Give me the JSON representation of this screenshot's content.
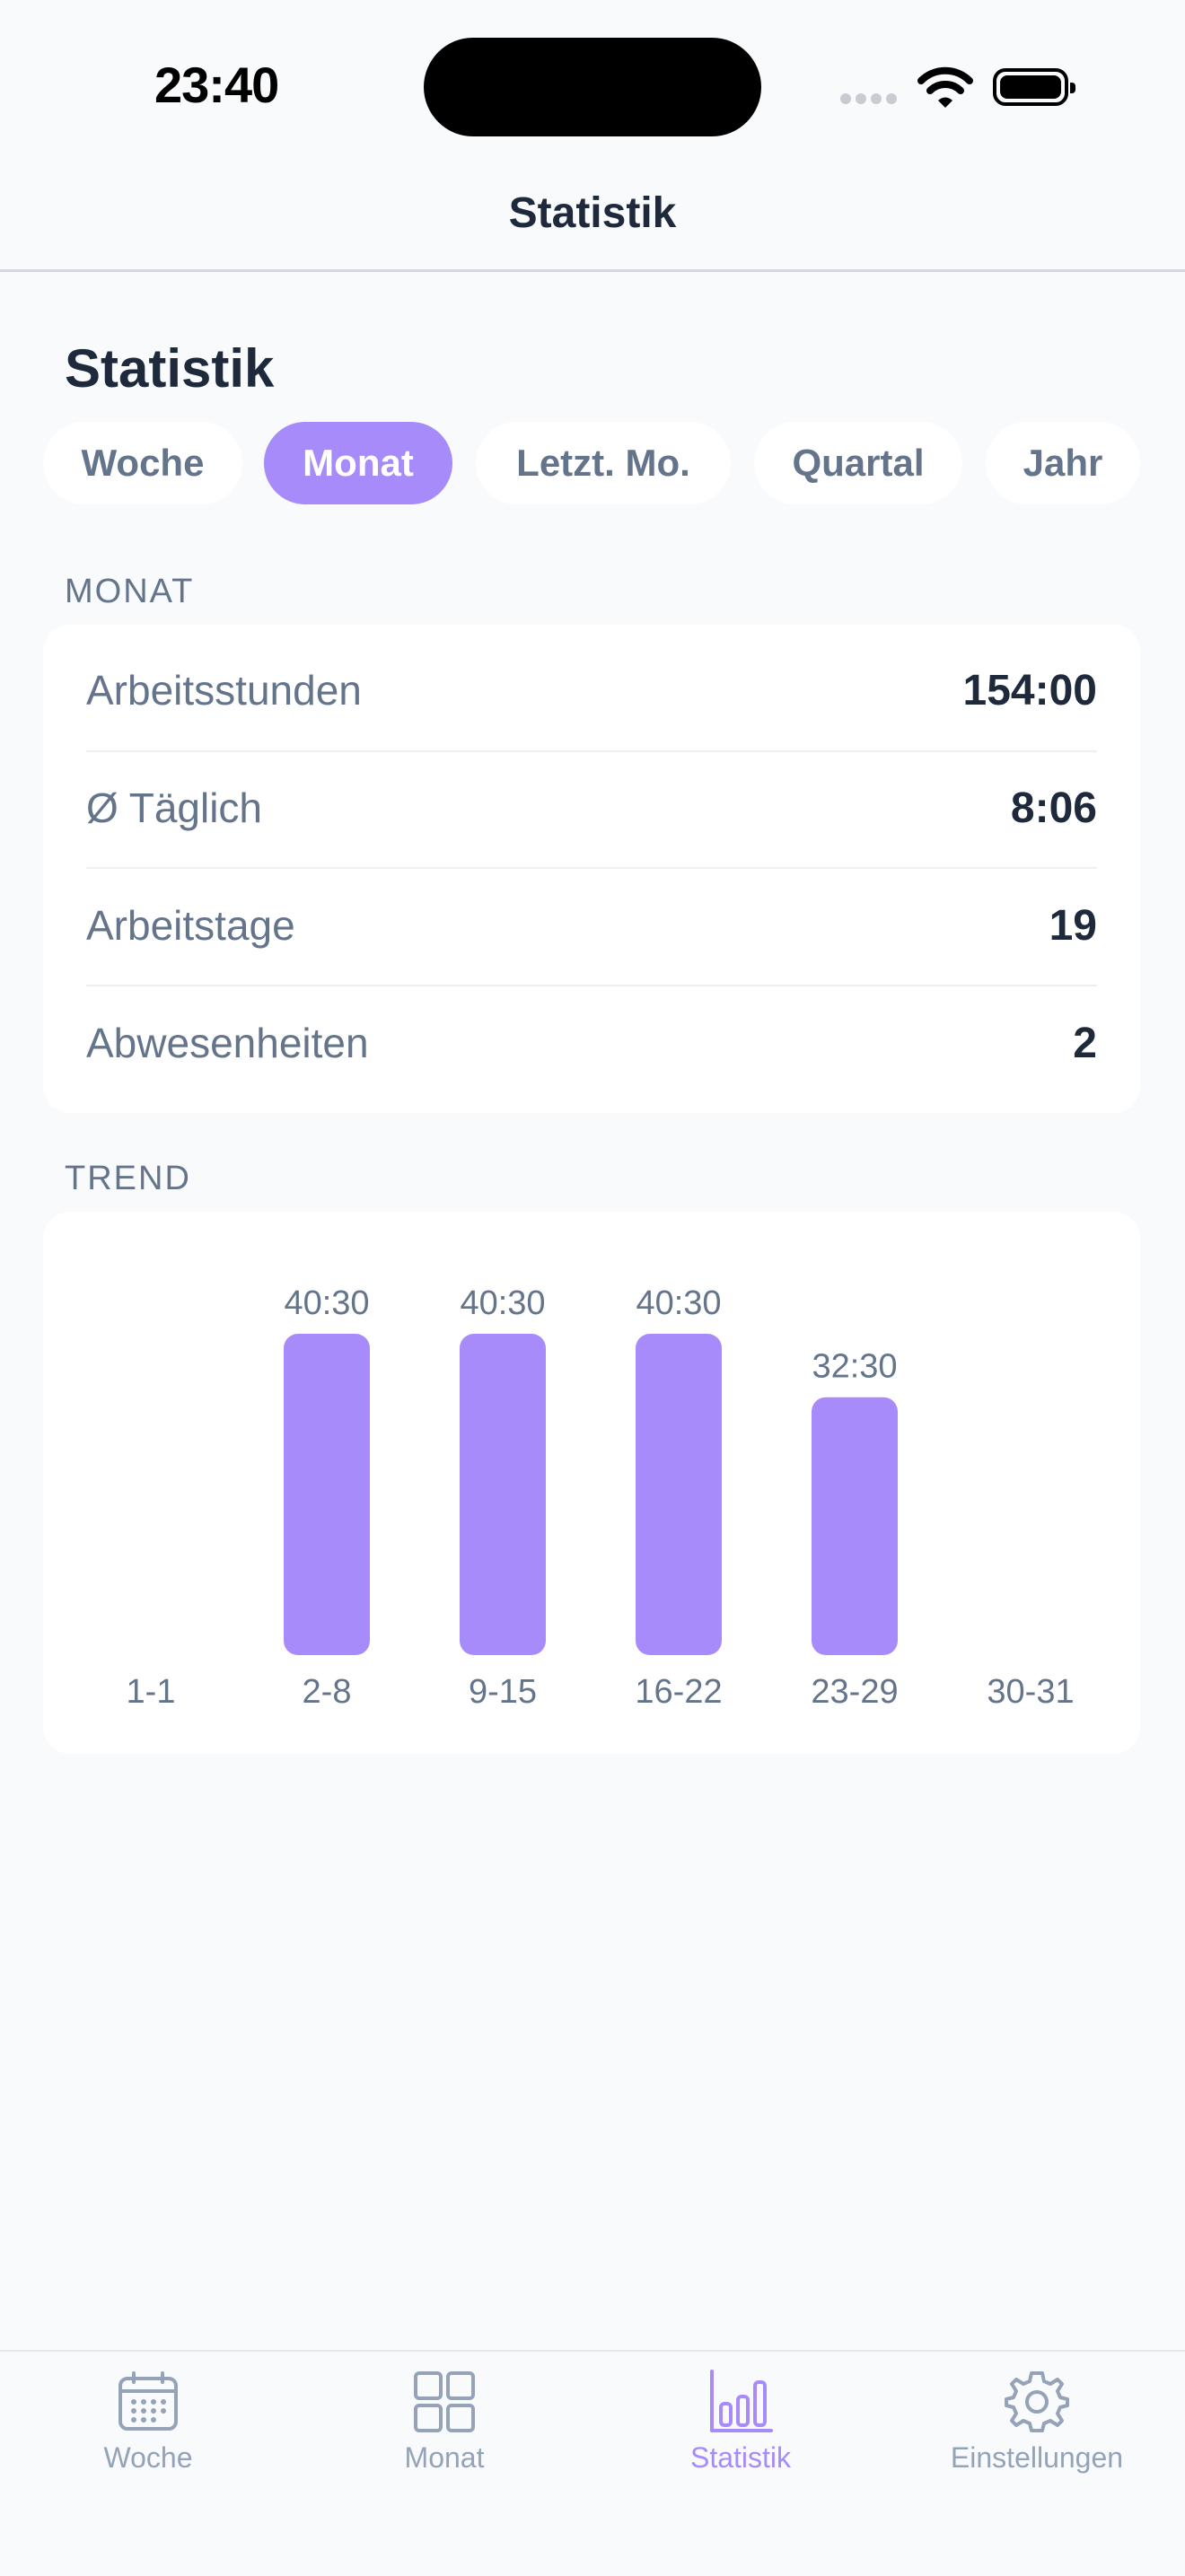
{
  "status_bar": {
    "time": "23:40"
  },
  "nav": {
    "title": "Statistik"
  },
  "page": {
    "heading": "Statistik"
  },
  "period_tabs": {
    "items": [
      {
        "label": "Woche",
        "active": false
      },
      {
        "label": "Monat",
        "active": true
      },
      {
        "label": "Letzt. Mo.",
        "active": false
      },
      {
        "label": "Quartal",
        "active": false
      },
      {
        "label": "Jahr",
        "active": false
      }
    ]
  },
  "summary": {
    "section_label": "MONAT",
    "rows": [
      {
        "label": "Arbeitsstunden",
        "value": "154:00"
      },
      {
        "label": "Ø Täglich",
        "value": "8:06"
      },
      {
        "label": "Arbeitstage",
        "value": "19"
      },
      {
        "label": "Abwesenheiten",
        "value": "2"
      }
    ]
  },
  "trend": {
    "section_label": "TREND"
  },
  "chart_data": {
    "type": "bar",
    "categories": [
      "1-1",
      "2-8",
      "9-15",
      "16-22",
      "23-29",
      "30-31"
    ],
    "values": [
      0,
      40.5,
      40.5,
      40.5,
      32.5,
      0
    ],
    "value_labels": [
      "",
      "40:30",
      "40:30",
      "40:30",
      "32:30",
      ""
    ],
    "title": "",
    "xlabel": "",
    "ylabel": "",
    "ylim": [
      0,
      40.5
    ],
    "grid": false,
    "bar_color": "#a78bfa"
  },
  "tabbar": {
    "items": [
      {
        "label": "Woche",
        "icon": "calendar-icon",
        "active": false
      },
      {
        "label": "Monat",
        "icon": "grid-icon",
        "active": false
      },
      {
        "label": "Statistik",
        "icon": "bar-chart-icon",
        "active": true
      },
      {
        "label": "Einstellungen",
        "icon": "gear-icon",
        "active": false
      }
    ]
  },
  "colors": {
    "accent": "#a78bfa",
    "background": "#f8fafc",
    "card": "#ffffff",
    "text_primary": "#1e293b",
    "text_secondary": "#64748b"
  }
}
